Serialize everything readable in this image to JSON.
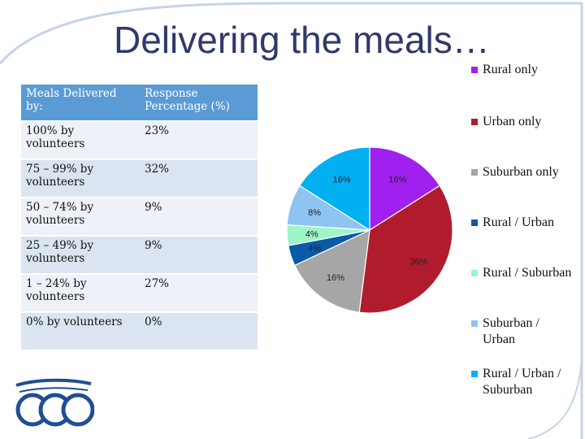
{
  "slide": {
    "title": "Delivering the meals…"
  },
  "table": {
    "headers": [
      "Meals Delivered by:",
      "Response Percentage (%)"
    ],
    "rows": [
      [
        "100% by volunteers",
        "23%"
      ],
      [
        "75 – 99% by volunteers",
        "32%"
      ],
      [
        "50 – 74% by volunteers",
        "9%"
      ],
      [
        "25 – 49% by volunteers",
        "9%"
      ],
      [
        "1 – 24% by volunteers",
        "27%"
      ],
      [
        "0% by volunteers",
        "0%"
      ]
    ]
  },
  "chart_data": {
    "type": "pie",
    "title": "",
    "legend_position": "right",
    "series": [
      {
        "name": "Rural only",
        "value": 16,
        "label": "16%",
        "color": "#a020f0"
      },
      {
        "name": "Urban only",
        "value": 36,
        "label": "36%",
        "color": "#b01c2e"
      },
      {
        "name": "Suburban only",
        "value": 16,
        "label": "16%",
        "color": "#a6a6a6"
      },
      {
        "name": "Rural / Urban",
        "value": 4,
        "label": "4%",
        "color": "#0b5aa8"
      },
      {
        "name": "Rural / Suburban",
        "value": 4,
        "label": "4%",
        "color": "#9df5c8"
      },
      {
        "name": "Suburban / Urban",
        "value": 8,
        "label": "8%",
        "color": "#8ec4f2"
      },
      {
        "name": "Rural / Urban / Suburban",
        "value": 16,
        "label": "16%",
        "color": "#00b0f0"
      }
    ]
  },
  "legend": {
    "items": [
      {
        "text": "Rural only"
      },
      {
        "text": "Urban only"
      },
      {
        "text": "Suburban only"
      },
      {
        "text": "Rural / Urban"
      },
      {
        "text": "Rural / Suburban"
      },
      {
        "text": "Suburban / Urban"
      },
      {
        "text": "Rural / Urban / Suburban"
      }
    ]
  },
  "icons": {
    "logo": "circles-logo-icon"
  }
}
